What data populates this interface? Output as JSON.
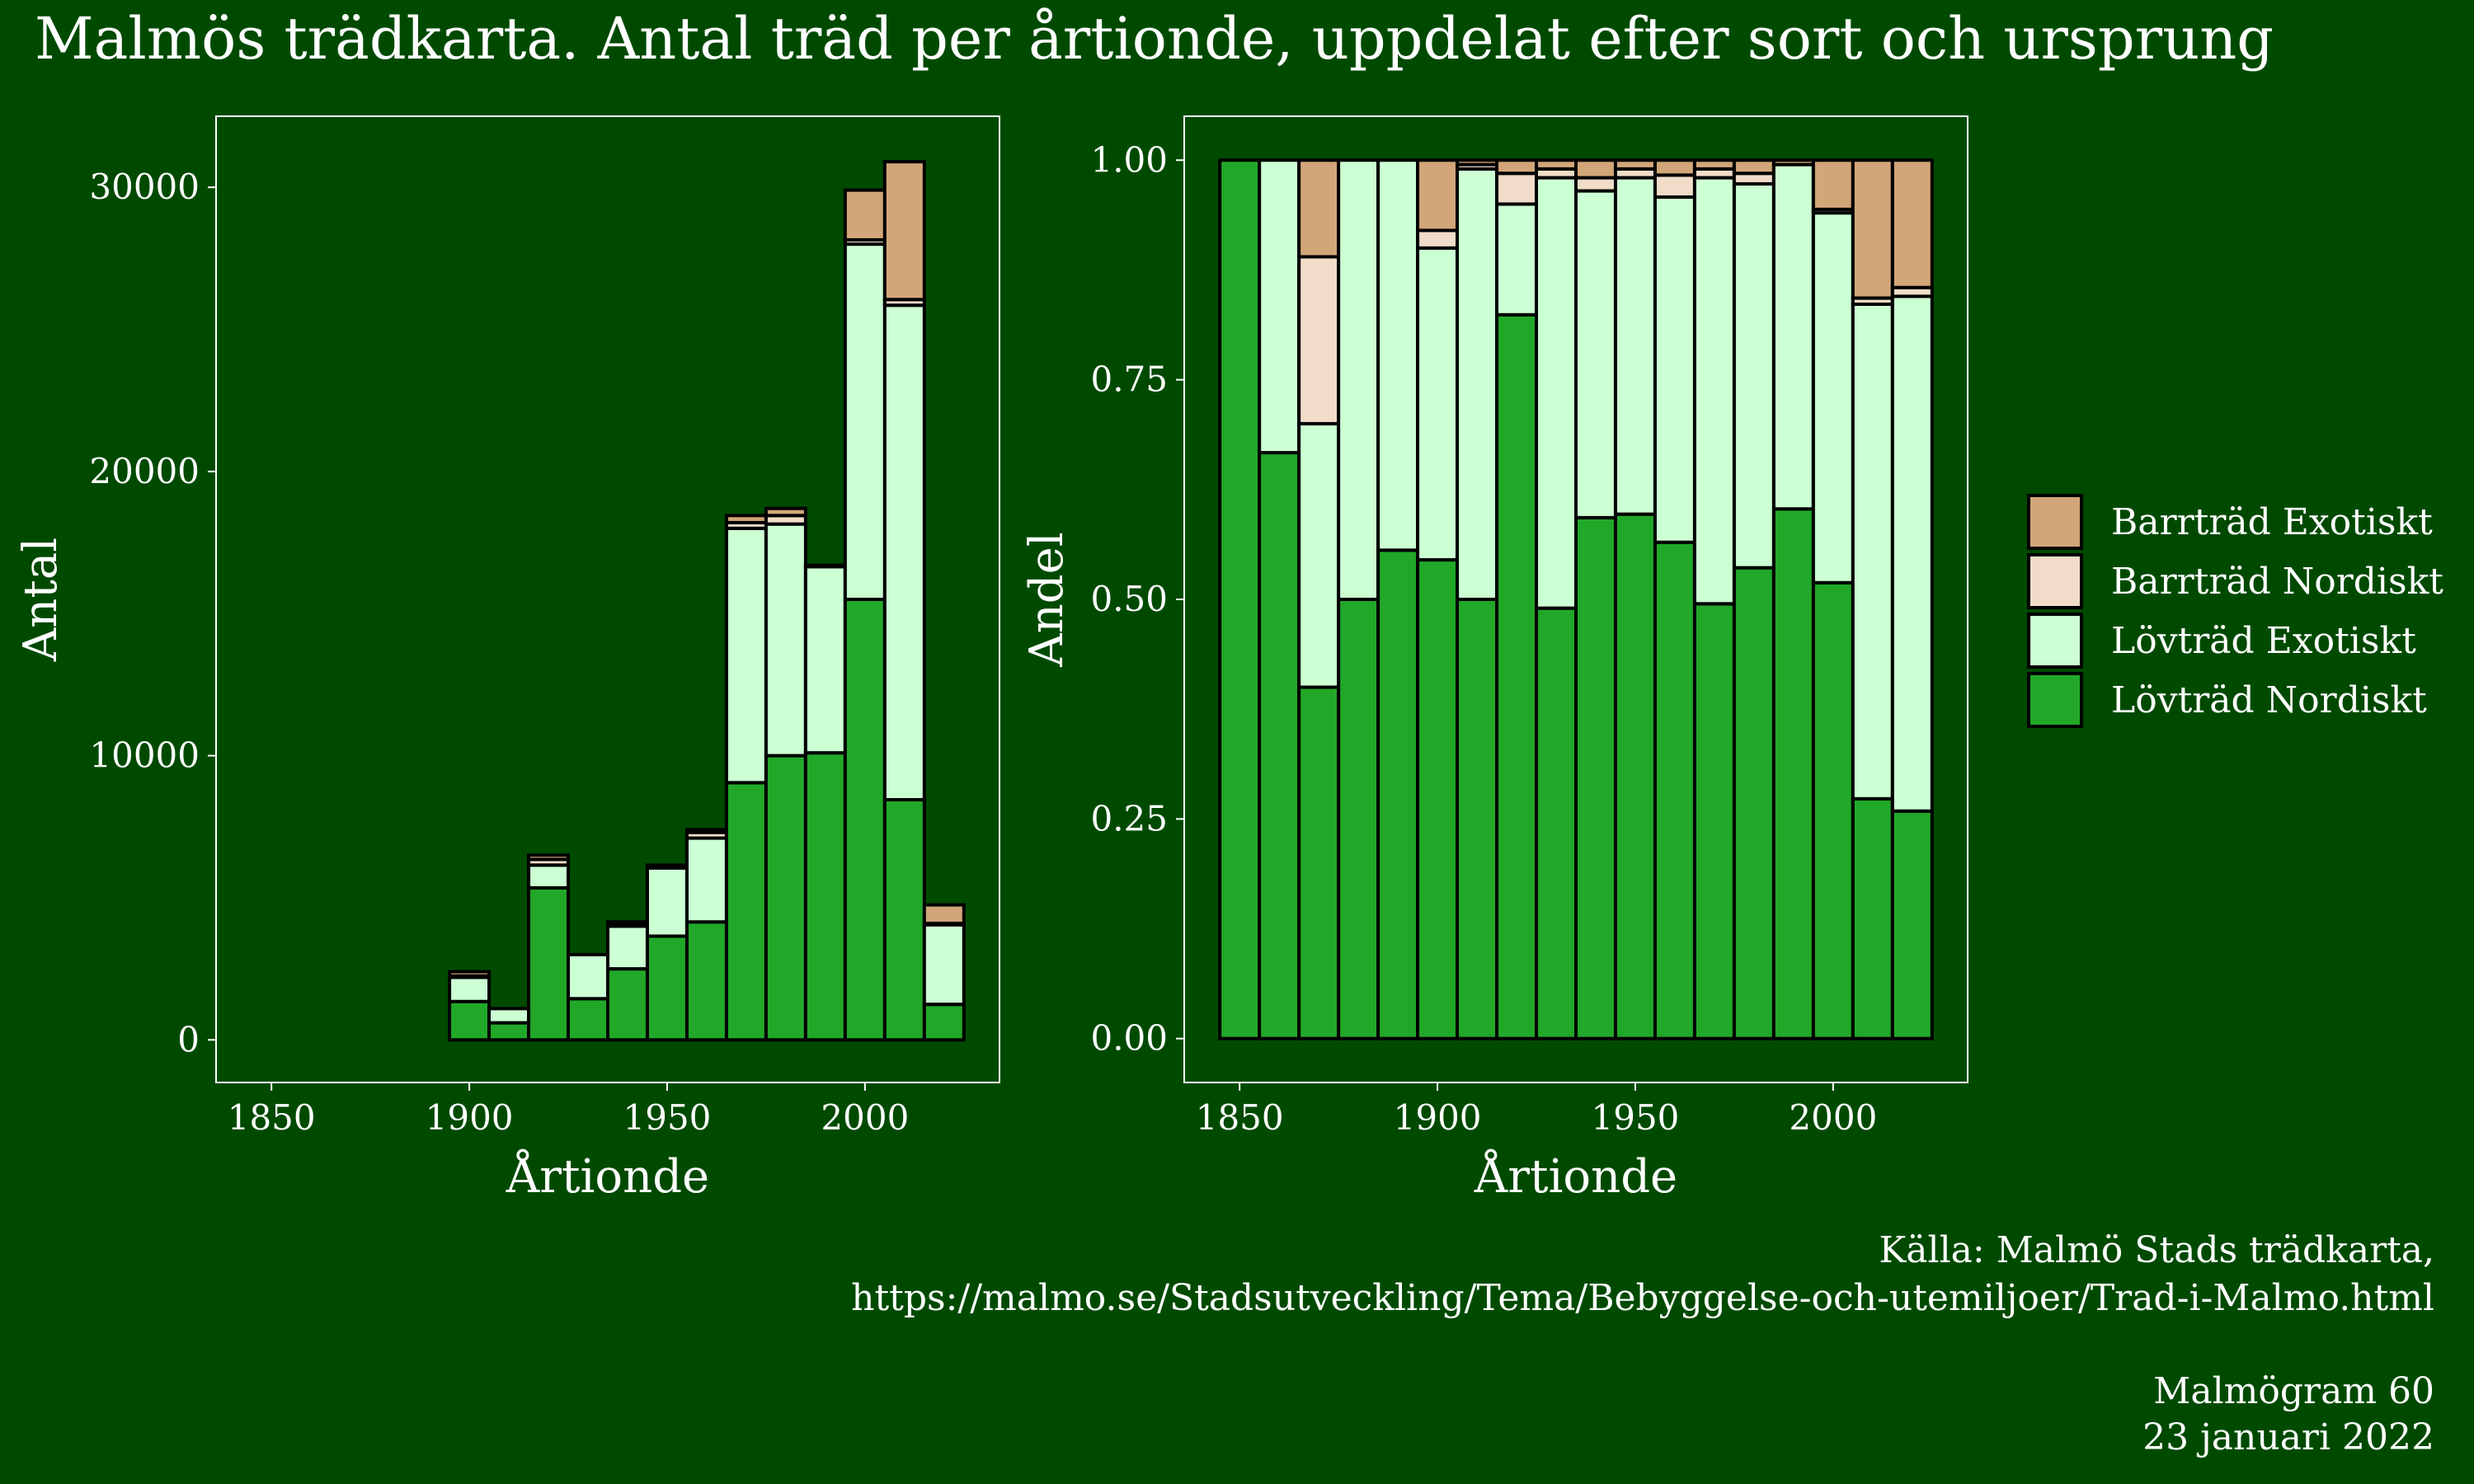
{
  "title": "Malmös trädkarta. Antal träd per årtionde, uppdelat efter sort och ursprung",
  "source": {
    "line1": "Källa: Malmö Stads trädkarta,",
    "line2": "https://malmo.se/Stadsutveckling/Tema/Bebyggelse-och-utemiljoer/Trad-i-Malmo.html"
  },
  "credit": {
    "line1": "Malmögram 60",
    "line2": "23 januari 2022"
  },
  "colors": {
    "background": "#004a00",
    "barrtrad_exotiskt": "#d2a679",
    "barrtrad_nordiskt": "#f0dcc8",
    "lovtrad_exotiskt": "#ccffd4",
    "lovtrad_nordiskt": "#21a829",
    "outline": "#000000",
    "frame": "#ffffff"
  },
  "chart_data": [
    {
      "type": "bar",
      "stacked": true,
      "panel": "count",
      "xlabel": "Årtionde",
      "ylabel": "Antal",
      "x": [
        1850,
        1860,
        1870,
        1880,
        1890,
        1900,
        1910,
        1920,
        1930,
        1940,
        1950,
        1960,
        1970,
        1980,
        1990,
        2000,
        2010,
        2020
      ],
      "xlim": [
        1836,
        2034
      ],
      "ylim": [
        -1500,
        32500
      ],
      "xticks": [
        "1850",
        "1900",
        "1950",
        "2000"
      ],
      "yticks": [
        "0",
        "10000",
        "20000",
        "30000"
      ],
      "series": [
        {
          "name": "Lövträd Nordiskt",
          "values": [
            0,
            0,
            0,
            0,
            0,
            1350,
            600,
            5350,
            1450,
            2500,
            3650,
            4150,
            9050,
            10000,
            10100,
            15500,
            8450,
            1250
          ]
        },
        {
          "name": "Lövträd Exotiskt",
          "values": [
            0,
            0,
            0,
            0,
            0,
            850,
            500,
            800,
            1550,
            1500,
            2400,
            2950,
            8950,
            8150,
            6550,
            12500,
            17400,
            2800
          ]
        },
        {
          "name": "Barrträd Nordiskt",
          "values": [
            0,
            0,
            0,
            0,
            0,
            50,
            0,
            200,
            0,
            50,
            50,
            200,
            200,
            300,
            0,
            150,
            200,
            50
          ]
        },
        {
          "name": "Barrträd Exotiskt",
          "values": [
            0,
            0,
            0,
            0,
            0,
            150,
            0,
            150,
            0,
            100,
            50,
            100,
            250,
            250,
            50,
            1750,
            4850,
            650
          ]
        }
      ]
    },
    {
      "type": "bar",
      "stacked": true,
      "panel": "share",
      "xlabel": "Årtionde",
      "ylabel": "Andel",
      "x": [
        1850,
        1860,
        1870,
        1880,
        1890,
        1900,
        1910,
        1920,
        1930,
        1940,
        1950,
        1960,
        1970,
        1980,
        1990,
        2000,
        2010,
        2020
      ],
      "xlim": [
        1836,
        2034
      ],
      "ylim": [
        -0.05,
        1.05
      ],
      "xticks": [
        "1850",
        "1900",
        "1950",
        "2000"
      ],
      "yticks": [
        "0.00",
        "0.25",
        "0.50",
        "0.75",
        "1.00"
      ],
      "series": [
        {
          "name": "Lövträd Nordiskt",
          "values": [
            1.0,
            0.667,
            0.4,
            0.5,
            0.556,
            0.545,
            0.5,
            0.824,
            0.49,
            0.593,
            0.597,
            0.565,
            0.495,
            0.536,
            0.603,
            0.519,
            0.273,
            0.259
          ]
        },
        {
          "name": "Lövträd Exotiskt",
          "values": [
            0.0,
            0.333,
            0.3,
            0.5,
            0.444,
            0.355,
            0.49,
            0.126,
            0.49,
            0.372,
            0.383,
            0.393,
            0.485,
            0.437,
            0.392,
            0.421,
            0.563,
            0.586
          ]
        },
        {
          "name": "Barrträd Nordiskt",
          "values": [
            0.0,
            0.0,
            0.19,
            0.0,
            0.0,
            0.02,
            0.005,
            0.035,
            0.01,
            0.015,
            0.01,
            0.025,
            0.01,
            0.012,
            0.0,
            0.004,
            0.007,
            0.01
          ]
        },
        {
          "name": "Barrträd Exotiskt",
          "values": [
            0.0,
            0.0,
            0.11,
            0.0,
            0.0,
            0.08,
            0.005,
            0.015,
            0.01,
            0.02,
            0.01,
            0.017,
            0.01,
            0.015,
            0.005,
            0.056,
            0.157,
            0.145
          ]
        }
      ]
    }
  ],
  "legend": {
    "position": "right",
    "items": [
      {
        "label": "Barrträd Exotiskt",
        "color": "#d2a679"
      },
      {
        "label": "Barrträd Nordiskt",
        "color": "#f0dcc8"
      },
      {
        "label": "Lövträd Exotiskt",
        "color": "#ccffd4"
      },
      {
        "label": "Lövträd Nordiskt",
        "color": "#21a829"
      }
    ]
  }
}
